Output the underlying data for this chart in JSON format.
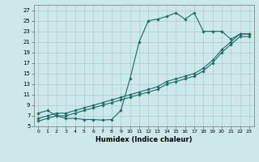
{
  "title": "",
  "xlabel": "Humidex (Indice chaleur)",
  "background_color": "#cce8e8",
  "grid_color": "#aacccc",
  "line_color": "#1a6b6b",
  "xlim": [
    -0.5,
    23.5
  ],
  "ylim": [
    5,
    28
  ],
  "xticks": [
    0,
    1,
    2,
    3,
    4,
    5,
    6,
    7,
    8,
    9,
    10,
    11,
    12,
    13,
    14,
    15,
    16,
    17,
    18,
    19,
    20,
    21,
    22,
    23
  ],
  "yticks": [
    5,
    7,
    9,
    11,
    13,
    15,
    17,
    19,
    21,
    23,
    25,
    27
  ],
  "series1_x": [
    0,
    1,
    2,
    3,
    4,
    5,
    6,
    7,
    8,
    9,
    10,
    11,
    12,
    13,
    14,
    15,
    16,
    17,
    18,
    19,
    20,
    21,
    22,
    23
  ],
  "series1_y": [
    7.5,
    8.0,
    7.0,
    6.5,
    6.5,
    6.3,
    6.3,
    6.2,
    6.3,
    8.0,
    14.0,
    21.0,
    25.0,
    25.3,
    25.8,
    26.5,
    25.3,
    26.5,
    23.0,
    23.0,
    23.0,
    21.5,
    22.5,
    22.5
  ],
  "series2_x": [
    0,
    1,
    2,
    3,
    4,
    5,
    6,
    7,
    8,
    9,
    10,
    11,
    12,
    13,
    14,
    15,
    16,
    17,
    18,
    19,
    20,
    21,
    22,
    23
  ],
  "series2_y": [
    6.5,
    7.0,
    7.5,
    7.5,
    8.0,
    8.5,
    9.0,
    9.5,
    10.0,
    10.5,
    11.0,
    11.5,
    12.0,
    12.5,
    13.5,
    14.0,
    14.5,
    15.0,
    16.0,
    17.5,
    19.5,
    21.0,
    22.5,
    22.5
  ],
  "series3_x": [
    0,
    1,
    2,
    3,
    4,
    5,
    6,
    7,
    8,
    9,
    10,
    11,
    12,
    13,
    14,
    15,
    16,
    17,
    18,
    19,
    20,
    21,
    22,
    23
  ],
  "series3_y": [
    6.0,
    6.5,
    7.0,
    7.0,
    7.5,
    8.0,
    8.5,
    9.0,
    9.5,
    10.0,
    10.5,
    11.0,
    11.5,
    12.0,
    13.0,
    13.5,
    14.0,
    14.5,
    15.5,
    17.0,
    19.0,
    20.5,
    22.0,
    22.0
  ],
  "tick_labelsize": 5,
  "xlabel_fontsize": 6
}
